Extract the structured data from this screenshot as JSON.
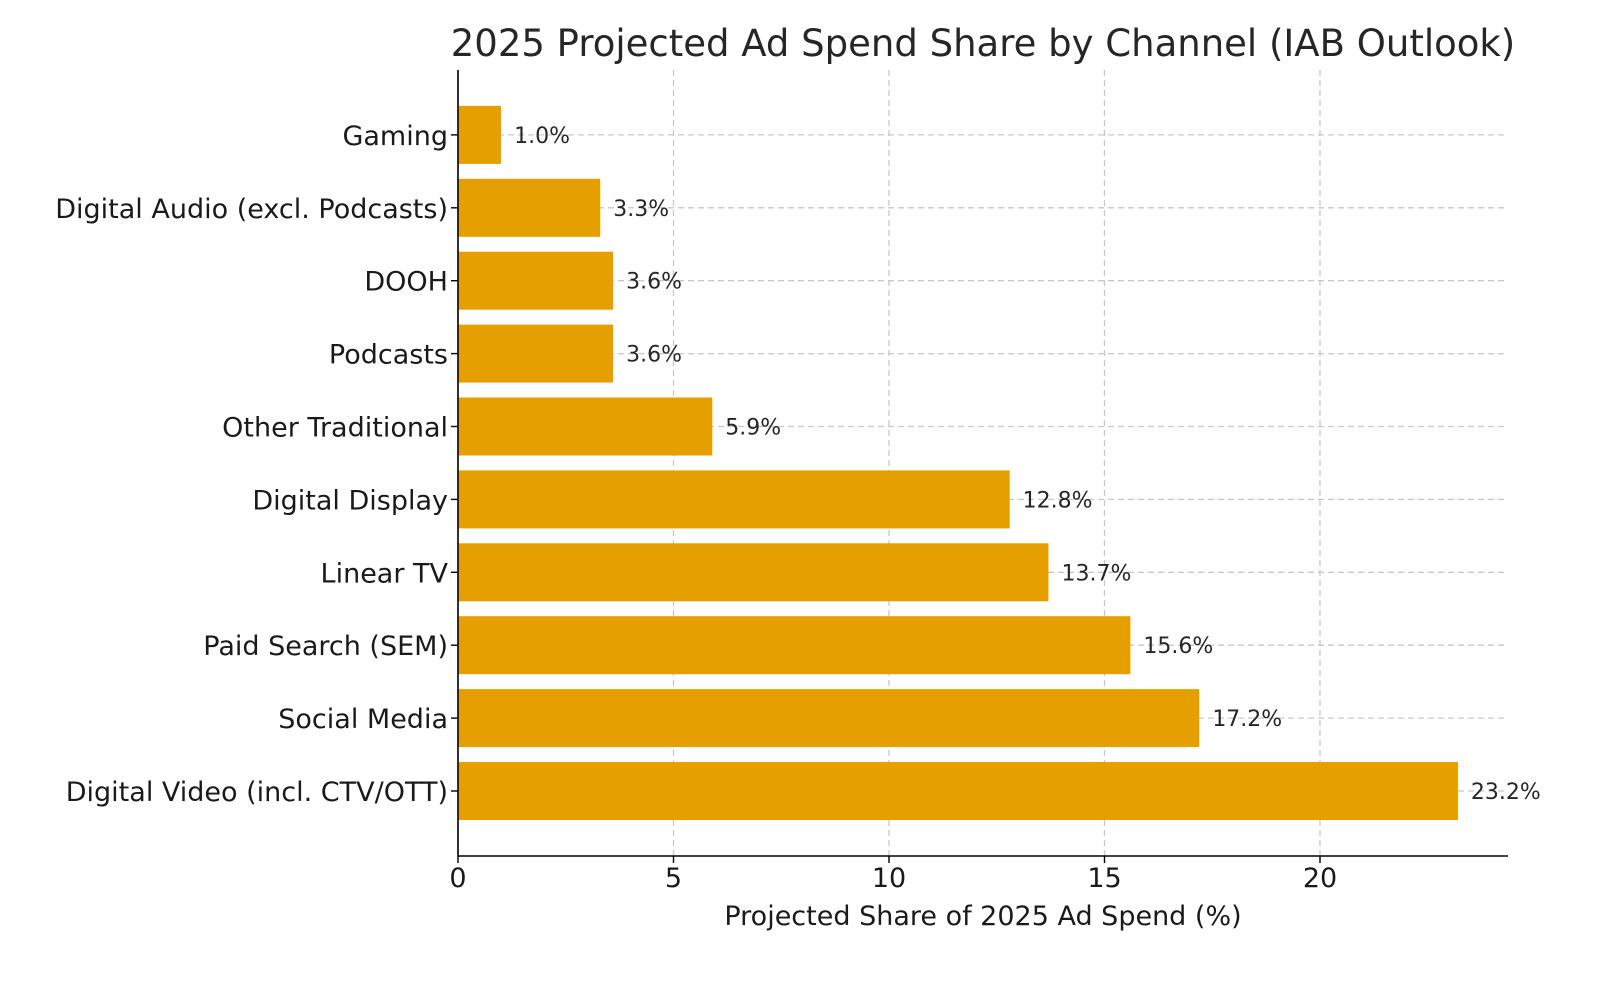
{
  "chart_data": {
    "type": "bar",
    "orientation": "horizontal",
    "title": "2025 Projected Ad Spend Share by Channel (IAB Outlook)",
    "xlabel": "Projected Share of 2025 Ad Spend (%)",
    "ylabel": "",
    "xlim": [
      0,
      24.36
    ],
    "xticks": [
      0,
      5,
      10,
      15,
      20
    ],
    "xtick_labels": [
      "0",
      "5",
      "10",
      "15",
      "20"
    ],
    "grid": true,
    "bar_color": "#E69F00",
    "categories": [
      "Digital Video (incl. CTV/OTT)",
      "Social Media",
      "Paid Search (SEM)",
      "Linear TV",
      "Digital Display",
      "Other Traditional",
      "Podcasts",
      "DOOH",
      "Digital Audio (excl. Podcasts)",
      "Gaming"
    ],
    "values": [
      23.2,
      17.2,
      15.6,
      13.7,
      12.8,
      5.9,
      3.6,
      3.6,
      3.3,
      1.0
    ],
    "value_labels": [
      "23.2%",
      "17.2%",
      "15.6%",
      "13.7%",
      "12.8%",
      "5.9%",
      "3.6%",
      "3.6%",
      "3.3%",
      "1.0%"
    ]
  }
}
